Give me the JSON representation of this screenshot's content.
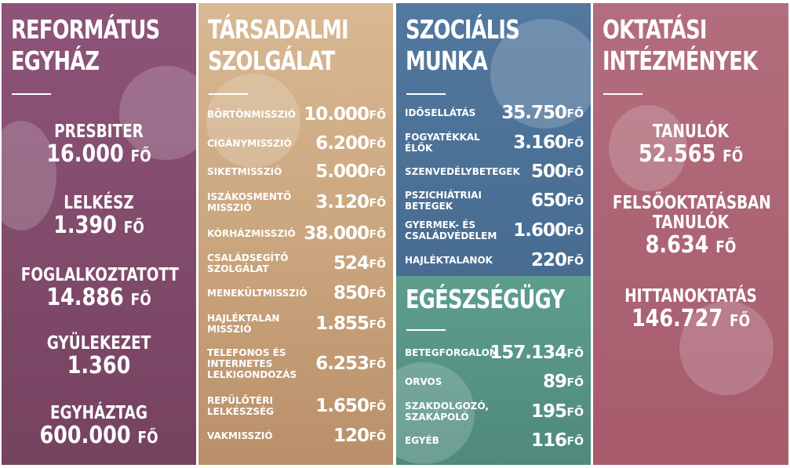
{
  "panels": {
    "reformatus": {
      "title": "REFORMÁTUS\nEGYHÁZ",
      "stats": [
        {
          "label": "PRESBITER",
          "value": "16.000",
          "unit": "FŐ"
        },
        {
          "label": "LELKÉSZ",
          "value": "1.390",
          "unit": "FŐ"
        },
        {
          "label": "FOGLALKOZTATOTT",
          "value": "14.886",
          "unit": "FŐ"
        },
        {
          "label": "GYÜLEKEZET",
          "value": "1.360",
          "unit": ""
        },
        {
          "label": "EGYHÁZTAG",
          "value": "600.000",
          "unit": "FŐ"
        }
      ]
    },
    "tarsadalmi": {
      "title": "TÁRSADALMI\nSZOLGÁLAT",
      "rows": [
        {
          "label": "BÖRTÖNMISSZIÓ",
          "value": "10.000",
          "unit": "FŐ"
        },
        {
          "label": "CIGÁNYMISSZIÓ",
          "value": "6.200",
          "unit": "FŐ"
        },
        {
          "label": "SIKETMISSZIÓ",
          "value": "5.000",
          "unit": "FŐ"
        },
        {
          "label": "ISZÁKOSMENTŐ\nMISSZIÓ",
          "value": "3.120",
          "unit": "FŐ"
        },
        {
          "label": "KÓRHÁZMISSZIÓ",
          "value": "38.000",
          "unit": "FŐ"
        },
        {
          "label": "CSALÁDSEGÍTŐ\nSZOLGÁLAT",
          "value": "524",
          "unit": "FŐ"
        },
        {
          "label": "MENEKÜLTMISSZIÓ",
          "value": "850",
          "unit": "FŐ"
        },
        {
          "label": "HAJLÉKTALAN\nMISSZIÓ",
          "value": "1.855",
          "unit": "FŐ"
        },
        {
          "label": "TELEFONOS ÉS\nINTERNETES\nLELKIGONDOZÁS",
          "value": "6.253",
          "unit": "FŐ"
        },
        {
          "label": "REPÜLŐTÉRI\nLELKÉSZSÉG",
          "value": "1.650",
          "unit": "FŐ"
        },
        {
          "label": "VAKMISSZIÓ",
          "value": "120",
          "unit": "FŐ"
        }
      ]
    },
    "szocialis": {
      "title": "SZOCIÁLIS\nMUNKA",
      "rows": [
        {
          "label": "IDŐSELLÁTÁS",
          "value": "35.750",
          "unit": "FŐ"
        },
        {
          "label": "FOGYATÉKKAL\nÉLŐK",
          "value": "3.160",
          "unit": "FŐ"
        },
        {
          "label": "SZENVEDÉLYBETEGEK",
          "value": "500",
          "unit": "FŐ"
        },
        {
          "label": "PSZICHIÁTRIAI\nBETEGEK",
          "value": "650",
          "unit": "FŐ"
        },
        {
          "label": "GYERMEK- ÉS\nCSALÁDVÉDELEM",
          "value": "1.600",
          "unit": "FŐ"
        },
        {
          "label": "HAJLÉKTALANOK",
          "value": "220",
          "unit": "FŐ"
        }
      ]
    },
    "egeszsegugy": {
      "title": "EGÉSZSÉGÜGY",
      "rows": [
        {
          "label": "BETEGFORGALOM",
          "value": "157.134",
          "unit": "FŐ"
        },
        {
          "label": "ORVOS",
          "value": "89",
          "unit": "FŐ"
        },
        {
          "label": "SZAKDOLGOZÓ,\nSZAKÁPOLÓ",
          "value": "195",
          "unit": "FŐ"
        },
        {
          "label": "EGYÉB",
          "value": "116",
          "unit": "FŐ"
        }
      ]
    },
    "oktatasi": {
      "title": "OKTATÁSI\nINTÉZMÉNYEK",
      "stats": [
        {
          "label": "TANULÓK",
          "value": "52.565",
          "unit": "FŐ"
        },
        {
          "label": "FELSŐOKTATÁSBAN\nTANULÓK",
          "value": "8.634",
          "unit": "FŐ"
        },
        {
          "label": "HITTANOKTATÁS",
          "value": "146.727",
          "unit": "FŐ"
        }
      ]
    }
  },
  "colors": {
    "reformatus": "#8e5479",
    "tarsadalmi": "#d8b994",
    "szocialis": "#52789f",
    "egeszsegugy": "#5e9d8e",
    "oktatasi": "#b26e7d"
  }
}
